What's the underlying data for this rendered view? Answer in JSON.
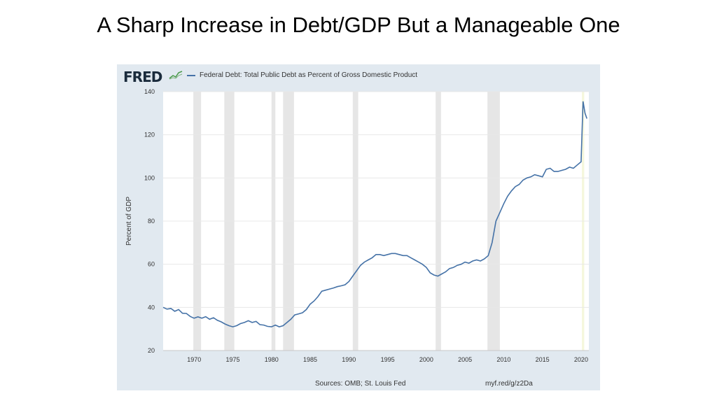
{
  "slide": {
    "title": "A Sharp Increase in Debt/GDP But a Manageable One"
  },
  "fred": {
    "logo_text": "FRED",
    "legend_label": "Federal Debt: Total Public Debt as Percent of Gross Domestic Product",
    "source": "Sources: OMB; St. Louis Fed",
    "url": "myf.red/g/z2Da"
  },
  "colors": {
    "line": "#4572a7",
    "recession": "#e6e6e6",
    "plot_bg": "#ffffff",
    "panel_bg": "#e1e9f0",
    "grid": "#e8e8e8",
    "covid_shade": "#f5f7dc"
  },
  "chart_data": {
    "type": "line",
    "title": "",
    "xlabel": "",
    "ylabel": "Percent of GDP",
    "xlim": [
      1966.0,
      2021.0
    ],
    "ylim": [
      20,
      140
    ],
    "y_ticks": [
      20,
      40,
      60,
      80,
      100,
      120,
      140
    ],
    "x_ticks": [
      1970,
      1975,
      1980,
      1985,
      1990,
      1995,
      2000,
      2005,
      2010,
      2015,
      2020
    ],
    "grid": true,
    "legend_position": "top-left",
    "recessions": [
      [
        1969.9,
        1970.9
      ],
      [
        1973.9,
        1975.2
      ],
      [
        1980.0,
        1980.5
      ],
      [
        1981.5,
        1982.9
      ],
      [
        1990.5,
        1991.2
      ],
      [
        2001.2,
        2001.9
      ],
      [
        2007.9,
        2009.5
      ],
      [
        2020.1,
        2020.4
      ]
    ],
    "series": [
      {
        "name": "Federal Debt: Total Public Debt as Percent of Gross Domestic Product",
        "x": [
          1966.0,
          1966.5,
          1967.0,
          1967.5,
          1968.0,
          1968.5,
          1969.0,
          1969.5,
          1970.0,
          1970.5,
          1971.0,
          1971.5,
          1972.0,
          1972.5,
          1973.0,
          1973.5,
          1974.0,
          1974.5,
          1975.0,
          1975.5,
          1976.0,
          1976.5,
          1977.0,
          1977.5,
          1978.0,
          1978.5,
          1979.0,
          1979.5,
          1980.0,
          1980.5,
          1981.0,
          1981.5,
          1982.0,
          1982.5,
          1983.0,
          1983.5,
          1984.0,
          1984.5,
          1985.0,
          1985.5,
          1986.0,
          1986.5,
          1987.0,
          1987.5,
          1988.0,
          1988.5,
          1989.0,
          1989.5,
          1990.0,
          1990.5,
          1991.0,
          1991.5,
          1992.0,
          1992.5,
          1993.0,
          1993.5,
          1994.0,
          1994.5,
          1995.0,
          1995.5,
          1996.0,
          1996.5,
          1997.0,
          1997.5,
          1998.0,
          1998.5,
          1999.0,
          1999.5,
          2000.0,
          2000.5,
          2001.0,
          2001.5,
          2002.0,
          2002.5,
          2003.0,
          2003.5,
          2004.0,
          2004.5,
          2005.0,
          2005.5,
          2006.0,
          2006.5,
          2007.0,
          2007.5,
          2008.0,
          2008.5,
          2009.0,
          2009.5,
          2010.0,
          2010.5,
          2011.0,
          2011.5,
          2012.0,
          2012.5,
          2013.0,
          2013.5,
          2014.0,
          2014.5,
          2015.0,
          2015.5,
          2016.0,
          2016.5,
          2017.0,
          2017.5,
          2018.0,
          2018.5,
          2019.0,
          2019.5,
          2020.0,
          2020.25,
          2020.5,
          2020.75
        ],
        "values": [
          40.0,
          39.2,
          39.5,
          38.2,
          39.0,
          37.3,
          37.2,
          35.8,
          35.0,
          35.6,
          35.0,
          35.7,
          34.5,
          35.2,
          34.0,
          33.3,
          32.3,
          31.5,
          31.0,
          31.5,
          32.5,
          33.0,
          33.8,
          33.0,
          33.5,
          32.0,
          31.8,
          31.2,
          31.0,
          31.8,
          31.0,
          31.5,
          33.0,
          34.5,
          36.5,
          37.0,
          37.5,
          39.0,
          41.5,
          43.0,
          45.0,
          47.5,
          48.0,
          48.5,
          49.0,
          49.6,
          50.0,
          50.5,
          52.0,
          54.5,
          57.0,
          59.5,
          61.0,
          62.0,
          63.0,
          64.5,
          64.5,
          64.0,
          64.5,
          65.0,
          65.0,
          64.5,
          64.0,
          64.0,
          63.0,
          62.0,
          61.0,
          60.0,
          58.5,
          56.0,
          55.0,
          54.5,
          55.5,
          56.5,
          58.0,
          58.5,
          59.5,
          60.0,
          61.0,
          60.5,
          61.5,
          62.0,
          61.5,
          62.5,
          64.0,
          70.0,
          80.0,
          84.0,
          88.0,
          91.5,
          94.0,
          96.0,
          97.0,
          99.0,
          100.0,
          100.5,
          101.5,
          101.0,
          100.5,
          104.0,
          104.5,
          103.0,
          103.0,
          103.5,
          104.0,
          105.0,
          104.5,
          106.0,
          107.5,
          135.5,
          130.0,
          127.5
        ]
      }
    ]
  }
}
